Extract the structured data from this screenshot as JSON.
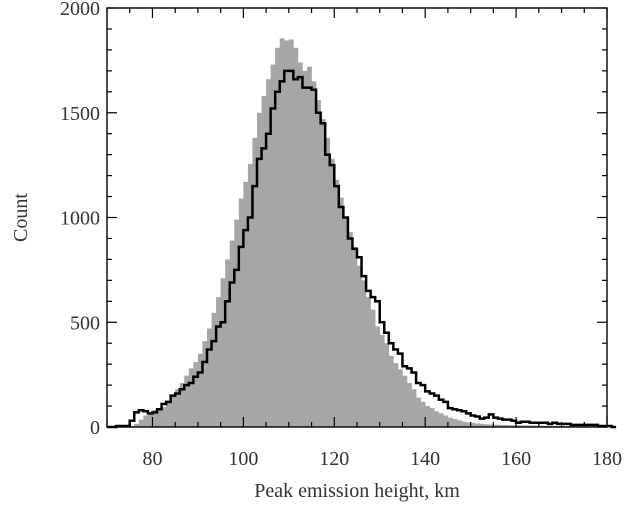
{
  "chart_data": {
    "type": "histogram",
    "title": "",
    "xlabel": "Peak emission height, km",
    "ylabel": "Count",
    "xlim": [
      70,
      180
    ],
    "ylim": [
      0,
      2000
    ],
    "xticks": [
      80,
      100,
      120,
      140,
      160,
      180
    ],
    "yticks": [
      0,
      500,
      1000,
      1500,
      2000
    ],
    "bin_width": 1,
    "bin_start": 70,
    "colors": {
      "filled": "#a6a6a6",
      "outline": "#000000",
      "frame": "#000000"
    },
    "series": [
      {
        "style": "filled",
        "values": [
          0,
          0,
          0,
          0,
          0,
          5,
          15,
          35,
          55,
          70,
          80,
          85,
          95,
          115,
          150,
          180,
          210,
          245,
          280,
          310,
          350,
          410,
          470,
          545,
          620,
          710,
          800,
          890,
          990,
          1090,
          1170,
          1255,
          1380,
          1500,
          1580,
          1660,
          1730,
          1810,
          1855,
          1845,
          1850,
          1810,
          1740,
          1700,
          1720,
          1650,
          1560,
          1470,
          1380,
          1280,
          1180,
          1095,
          1000,
          930,
          860,
          770,
          700,
          620,
          560,
          480,
          440,
          400,
          340,
          305,
          275,
          245,
          210,
          180,
          140,
          120,
          100,
          90,
          75,
          65,
          55,
          45,
          38,
          32,
          26,
          22,
          20,
          17,
          15,
          13,
          12,
          11,
          10,
          10,
          9,
          9,
          8,
          8,
          8,
          7,
          7,
          6,
          6,
          6,
          5,
          5,
          5,
          4,
          4,
          4,
          3,
          3,
          3,
          3,
          2,
          2,
          2,
          2
        ]
      },
      {
        "style": "outline",
        "values": [
          0,
          0,
          5,
          5,
          5,
          30,
          70,
          80,
          75,
          65,
          70,
          85,
          110,
          120,
          150,
          160,
          180,
          200,
          210,
          240,
          260,
          310,
          370,
          410,
          480,
          500,
          600,
          690,
          750,
          860,
          940,
          1000,
          1150,
          1280,
          1330,
          1400,
          1520,
          1600,
          1650,
          1700,
          1700,
          1660,
          1670,
          1620,
          1620,
          1610,
          1500,
          1450,
          1300,
          1250,
          1150,
          1050,
          1000,
          900,
          850,
          810,
          720,
          650,
          620,
          600,
          500,
          450,
          400,
          370,
          350,
          290,
          280,
          260,
          210,
          200,
          170,
          160,
          150,
          130,
          120,
          90,
          85,
          80,
          75,
          65,
          55,
          50,
          40,
          45,
          60,
          45,
          40,
          35,
          35,
          30,
          20,
          25,
          25,
          20,
          20,
          20,
          20,
          15,
          20,
          15,
          15,
          15,
          10,
          10,
          10,
          10,
          10,
          10,
          5,
          5,
          5,
          0
        ]
      }
    ]
  }
}
